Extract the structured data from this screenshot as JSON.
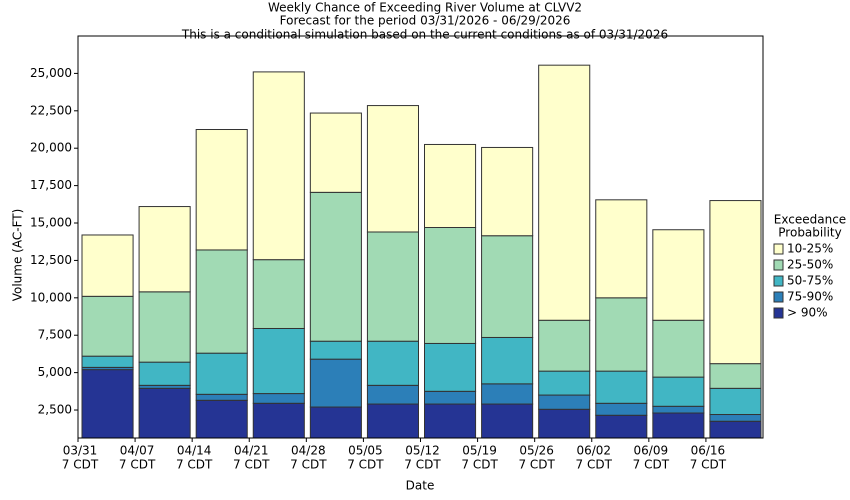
{
  "chart_data": {
    "type": "stacked_bar",
    "title": "Weekly Chance of Exceeding River Volume at CLVV2",
    "subtitle": "Forecast for the period 03/31/2026 - 06/29/2026",
    "subtitle2": "This is a conditional simulation based on the current conditions as of 03/31/2026",
    "x_label": "Date",
    "y_label": "Volume (AC-FT)",
    "legend_title": [
      "Exceedance",
      "Probability"
    ],
    "legend": "right",
    "categories": [
      "03/31",
      "04/07",
      "04/14",
      "04/21",
      "04/28",
      "05/05",
      "05/12",
      "05/19",
      "05/26",
      "06/02",
      "06/09",
      "06/16"
    ],
    "x_tick_suffix": "7 CDT",
    "series": [
      {
        "name": "> 90%",
        "color": "#253494",
        "values": [
          5200,
          3950,
          3150,
          2950,
          2700,
          2900,
          2900,
          2900,
          2550,
          2150,
          2300,
          1750
        ]
      },
      {
        "name": "75-90%",
        "color": "#2c7fb8",
        "values": [
          150,
          200,
          400,
          650,
          3200,
          1250,
          850,
          1350,
          950,
          800,
          450,
          450
        ]
      },
      {
        "name": "50-75%",
        "color": "#41b6c4",
        "values": [
          750,
          1550,
          2750,
          4350,
          1200,
          2950,
          3200,
          3100,
          1600,
          2150,
          1950,
          1750
        ]
      },
      {
        "name": "25-50%",
        "color": "#a1dab4",
        "values": [
          4000,
          4700,
          6900,
          4600,
          9950,
          7300,
          7750,
          6800,
          3400,
          4900,
          3800,
          1650
        ]
      },
      {
        "name": "10-25%",
        "color": "#ffffcc",
        "values": [
          4100,
          5700,
          8050,
          12550,
          5300,
          8450,
          5550,
          5900,
          17050,
          6550,
          6050,
          10900
        ]
      }
    ],
    "ylim": [
      630,
      27500
    ],
    "yticks": [
      {
        "value": 2500,
        "label": "2,500"
      },
      {
        "value": 5000,
        "label": "5,000"
      },
      {
        "value": 7500,
        "label": "7,500"
      },
      {
        "value": 10000,
        "label": "10,000"
      },
      {
        "value": 12500,
        "label": "12,500"
      },
      {
        "value": 15000,
        "label": "15,000"
      },
      {
        "value": 17500,
        "label": "17,500"
      },
      {
        "value": 20000,
        "label": "20,000"
      },
      {
        "value": 22500,
        "label": "22,500"
      },
      {
        "value": 25000,
        "label": "25,000"
      }
    ],
    "grid": false
  }
}
